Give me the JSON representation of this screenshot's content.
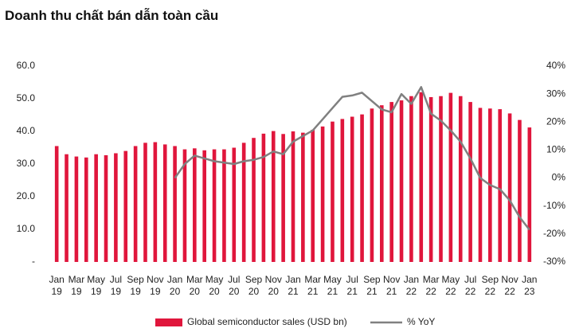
{
  "chart_data": {
    "type": "bar-line",
    "title": "Doanh thu chất bán dẫn toàn cầu",
    "categories": [
      "Jan 19",
      null,
      "Mar 19",
      null,
      "May 19",
      null,
      "Jul 19",
      null,
      "Sep 19",
      null,
      "Nov 19",
      null,
      "Jan 20",
      null,
      "Mar 20",
      null,
      "May 20",
      null,
      "Jul 20",
      null,
      "Sep 20",
      null,
      "Nov 20",
      null,
      "Jan 21",
      null,
      "Mar 21",
      null,
      "May 21",
      null,
      "Jul 21",
      null,
      "Sep 21",
      null,
      "Nov 21",
      null,
      "Jan 22",
      null,
      "Mar 22",
      null,
      "May 22",
      null,
      "Jul 22",
      null,
      "Sep 22",
      null,
      "Nov 22",
      null,
      "Jan 23"
    ],
    "series": [
      {
        "name": "Global semiconductor sales (USD bn)",
        "type": "bar",
        "color": "#e0163c",
        "values": [
          35.5,
          33,
          32.3,
          32,
          33,
          32.7,
          33.3,
          34,
          35.5,
          36.5,
          36.7,
          36,
          35.5,
          34.5,
          34.8,
          34.2,
          34.5,
          34.5,
          35,
          36.5,
          38,
          39.3,
          40.1,
          39.2,
          40,
          39.6,
          40.5,
          41.5,
          43,
          43.8,
          44.5,
          45.2,
          47,
          48,
          49,
          49.5,
          50.8,
          52,
          50.5,
          50.8,
          51.8,
          50.8,
          49,
          47.2,
          47,
          46.8,
          45.5,
          43.5,
          41.2
        ]
      },
      {
        "name": "% YoY",
        "type": "line",
        "axis": "y2",
        "color": "#808080",
        "values": [
          null,
          null,
          null,
          null,
          null,
          null,
          null,
          null,
          null,
          null,
          null,
          null,
          0,
          5,
          8,
          7,
          6,
          5.5,
          5,
          6,
          6.5,
          7.5,
          9.5,
          8.5,
          13,
          15,
          17,
          21,
          25,
          29,
          29.5,
          30.5,
          27.5,
          24.5,
          23.5,
          30,
          26.5,
          32.5,
          23,
          20.5,
          17,
          13,
          7,
          0,
          -2.5,
          -4,
          -8,
          -14,
          -18.5
        ]
      }
    ],
    "ylim": [
      0,
      60
    ],
    "yticks": [
      {
        "value": 0,
        "label": "-"
      },
      {
        "value": 10,
        "label": "10.0"
      },
      {
        "value": 20,
        "label": "20.0"
      },
      {
        "value": 30,
        "label": "30.0"
      },
      {
        "value": 40,
        "label": "40.0"
      },
      {
        "value": 50,
        "label": "50.0"
      },
      {
        "value": 60,
        "label": "60.0"
      }
    ],
    "y2lim": [
      -30,
      40
    ],
    "y2ticks": [
      {
        "value": -30,
        "label": "-30%"
      },
      {
        "value": -20,
        "label": "-20%"
      },
      {
        "value": -10,
        "label": "-10%"
      },
      {
        "value": 0,
        "label": "0%"
      },
      {
        "value": 10,
        "label": "10%"
      },
      {
        "value": 20,
        "label": "20%"
      },
      {
        "value": 30,
        "label": "30%"
      },
      {
        "value": 40,
        "label": "40%"
      }
    ],
    "grid": false,
    "legend": "bottom"
  }
}
